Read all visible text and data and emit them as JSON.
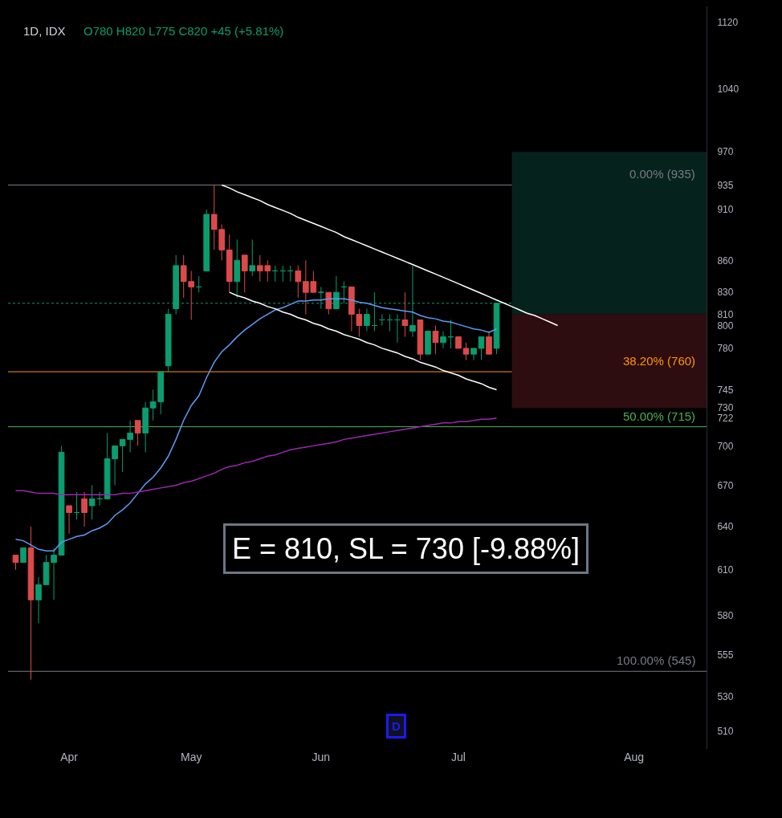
{
  "chart_data": {
    "type": "candlestick",
    "title": "1D, IDX",
    "subtitle": "O780 H820 L775 C820 +45 (+5.81%)",
    "categories": [
      null,
      null,
      null,
      null,
      null,
      null,
      null,
      "Apr",
      null,
      null,
      null,
      null,
      null,
      null,
      null,
      null,
      null,
      null,
      null,
      null,
      null,
      null,
      null,
      "May",
      null,
      null,
      null,
      null,
      null,
      null,
      null,
      null,
      null,
      null,
      null,
      null,
      null,
      null,
      null,
      null,
      "Jun",
      null,
      null,
      null,
      null,
      null,
      null,
      null,
      null,
      null,
      null,
      null,
      null,
      null,
      null,
      null,
      null,
      null,
      "Jul",
      null,
      null,
      null,
      null,
      null,
      null,
      null,
      null,
      null,
      null,
      null,
      null,
      null,
      null,
      null,
      null,
      null,
      null,
      null,
      null,
      null,
      null,
      "Aug",
      null,
      null,
      null,
      null,
      null,
      null,
      null,
      null,
      null
    ],
    "ohlc": [
      [
        620,
        620,
        610,
        615
      ],
      [
        615,
        625,
        615,
        625
      ],
      [
        625,
        640,
        540,
        590
      ],
      [
        590,
        605,
        575,
        600
      ],
      [
        600,
        620,
        600,
        615
      ],
      [
        615,
        625,
        590,
        620
      ],
      [
        620,
        700,
        620,
        695
      ],
      [
        655,
        655,
        635,
        650
      ],
      [
        650,
        665,
        645,
        650
      ],
      [
        660,
        665,
        640,
        650
      ],
      [
        655,
        670,
        645,
        660
      ],
      [
        660,
        665,
        655,
        660
      ],
      [
        660,
        710,
        660,
        690
      ],
      [
        690,
        700,
        670,
        700
      ],
      [
        700,
        705,
        680,
        705
      ],
      [
        705,
        720,
        695,
        710
      ],
      [
        720,
        720,
        700,
        710
      ],
      [
        710,
        735,
        695,
        730
      ],
      [
        730,
        745,
        720,
        735
      ],
      [
        735,
        760,
        725,
        760
      ],
      [
        765,
        815,
        760,
        810
      ],
      [
        815,
        865,
        810,
        855
      ],
      [
        855,
        865,
        825,
        840
      ],
      [
        840,
        850,
        805,
        835
      ],
      [
        835,
        845,
        830,
        835
      ],
      [
        850,
        910,
        850,
        905
      ],
      [
        905,
        935,
        870,
        890
      ],
      [
        890,
        895,
        860,
        870
      ],
      [
        870,
        885,
        830,
        840
      ],
      [
        840,
        880,
        825,
        860
      ],
      [
        865,
        865,
        830,
        850
      ],
      [
        850,
        880,
        845,
        855
      ],
      [
        855,
        865,
        840,
        850
      ],
      [
        855,
        860,
        840,
        850
      ],
      [
        850,
        855,
        840,
        850
      ],
      [
        850,
        855,
        840,
        850
      ],
      [
        850,
        855,
        840,
        850
      ],
      [
        850,
        855,
        825,
        840
      ],
      [
        840,
        860,
        810,
        830
      ],
      [
        840,
        850,
        830,
        830
      ],
      [
        830,
        835,
        815,
        830
      ],
      [
        830,
        830,
        810,
        815
      ],
      [
        815,
        845,
        815,
        830
      ],
      [
        835,
        840,
        820,
        835
      ],
      [
        835,
        835,
        795,
        810
      ],
      [
        810,
        815,
        790,
        800
      ],
      [
        800,
        815,
        795,
        810
      ],
      [
        800,
        830,
        795,
        800
      ],
      [
        805,
        810,
        800,
        805
      ],
      [
        805,
        810,
        795,
        805
      ],
      [
        805,
        810,
        785,
        805
      ],
      [
        805,
        830,
        790,
        800
      ],
      [
        795,
        855,
        790,
        800
      ],
      [
        805,
        805,
        770,
        775
      ],
      [
        775,
        795,
        775,
        795
      ],
      [
        795,
        800,
        775,
        785
      ],
      [
        785,
        795,
        780,
        790
      ],
      [
        790,
        805,
        780,
        790
      ],
      [
        790,
        790,
        780,
        780
      ],
      [
        780,
        785,
        770,
        775
      ],
      [
        775,
        780,
        770,
        780
      ],
      [
        780,
        790,
        770,
        790
      ],
      [
        790,
        795,
        775,
        775
      ],
      [
        780,
        820,
        775,
        820
      ],
      null,
      null,
      null,
      null,
      null,
      null,
      null,
      null,
      null,
      null,
      null,
      null,
      null,
      null,
      null,
      null,
      null,
      null,
      null,
      null,
      null,
      null,
      null,
      null,
      null,
      null,
      null
    ],
    "colors": [
      "#db4a4a",
      "#0b9c6f",
      "#db4a4a",
      "#0b9c6f",
      "#0b9c6f",
      "#0b9c6f",
      "#0b9c6f",
      "#db4a4a",
      "#0b9c6f",
      "#db4a4a",
      "#0b9c6f",
      "#0b9c6f",
      "#0b9c6f",
      "#0b9c6f",
      "#0b9c6f",
      "#0b9c6f",
      "#db4a4a",
      "#0b9c6f",
      "#0b9c6f",
      "#0b9c6f",
      "#0b9c6f",
      "#0b9c6f",
      "#db4a4a",
      "#db4a4a",
      "#0b9c6f",
      "#0b9c6f",
      "#db4a4a",
      "#db4a4a",
      "#db4a4a",
      "#0b9c6f",
      "#db4a4a",
      "#0b9c6f",
      "#db4a4a",
      "#db4a4a",
      "#0b9c6f",
      "#0b9c6f",
      "#0b9c6f",
      "#db4a4a",
      "#db4a4a",
      "#db4a4a",
      "#0b9c6f",
      "#db4a4a",
      "#0b9c6f",
      "#0b9c6f",
      "#db4a4a",
      "#db4a4a",
      "#0b9c6f",
      "#0b9c6f",
      "#0b9c6f",
      "#0b9c6f",
      "#0b9c6f",
      "#db4a4a",
      "#0b9c6f",
      "#db4a4a",
      "#0b9c6f",
      "#db4a4a",
      "#0b9c6f",
      "#0b9c6f",
      "#db4a4a",
      "#db4a4a",
      "#0b9c6f",
      "#0b9c6f",
      "#db4a4a",
      "#0b9c6f",
      null,
      null,
      null,
      null,
      null,
      null,
      null,
      null,
      null,
      null,
      null,
      null,
      null,
      null,
      null,
      null,
      null,
      null,
      null,
      null,
      null,
      null,
      null,
      null,
      null,
      null,
      null
    ],
    "series": [
      {
        "type": "line",
        "color": "#5b9cf6",
        "values": [
          631,
          630,
          627,
          624,
          623,
          623,
          629,
          631,
          633,
          634,
          637,
          639,
          642,
          648,
          652,
          657,
          664,
          671,
          676,
          683,
          692,
          705,
          720,
          732,
          740,
          755,
          768,
          777,
          783,
          790,
          796,
          801,
          806,
          810,
          814,
          816,
          819,
          822,
          822,
          823,
          823,
          824,
          824,
          824,
          823,
          821,
          820,
          818,
          816,
          815,
          814,
          813,
          812,
          809,
          807,
          806,
          804,
          803,
          801,
          799,
          797,
          796,
          794,
          797,
          null,
          null,
          null,
          null,
          null,
          null,
          null,
          null,
          null,
          null,
          null,
          null,
          null,
          null,
          null,
          null,
          null,
          null,
          null,
          null,
          null,
          null,
          null,
          null,
          null,
          null,
          null
        ]
      },
      {
        "type": "line",
        "color": "#9c27b0",
        "values": [
          666,
          666,
          665,
          664,
          664,
          664,
          663,
          663,
          663,
          663,
          663,
          663,
          663,
          663,
          664,
          664,
          665,
          666,
          667,
          668,
          669,
          670,
          672,
          673,
          675,
          677,
          679,
          682,
          684,
          685,
          687,
          688,
          690,
          692,
          693,
          695,
          697,
          698,
          699,
          700,
          701,
          702,
          703,
          705,
          706,
          707,
          708,
          709,
          710,
          711,
          712,
          713,
          714,
          715,
          716,
          717,
          718,
          718,
          719,
          719,
          720,
          721,
          721,
          722,
          null,
          null,
          null,
          null,
          null,
          null,
          null,
          null,
          null,
          null,
          null,
          null,
          null,
          null,
          null,
          null,
          null,
          null,
          null,
          null,
          null,
          null,
          null,
          null,
          null,
          null,
          null
        ]
      },
      {
        "type": "line",
        "color": "#ffffff",
        "values": [
          null,
          null,
          null,
          null,
          null,
          null,
          null,
          null,
          null,
          null,
          null,
          null,
          null,
          null,
          null,
          null,
          null,
          null,
          null,
          null,
          null,
          null,
          null,
          null,
          null,
          null,
          null,
          935,
          932,
          928,
          925,
          922,
          919,
          915,
          912,
          909,
          906,
          902,
          899,
          896,
          893,
          890,
          887,
          883,
          880,
          877,
          874,
          871,
          868,
          865,
          862,
          859,
          856,
          853,
          850,
          847,
          844,
          841,
          838,
          835,
          832,
          829,
          826,
          823,
          820,
          817,
          814,
          811,
          809,
          806,
          803,
          800,
          null,
          null,
          null,
          null,
          null,
          null,
          null,
          null,
          null,
          null,
          null,
          null,
          null,
          null,
          null,
          null,
          null,
          null,
          null
        ]
      },
      {
        "type": "line",
        "color": "#ffffff",
        "values": [
          null,
          null,
          null,
          null,
          null,
          null,
          null,
          null,
          null,
          null,
          null,
          null,
          null,
          null,
          null,
          null,
          null,
          null,
          null,
          null,
          null,
          null,
          null,
          null,
          null,
          null,
          null,
          null,
          830,
          827,
          825,
          822,
          820,
          817,
          815,
          812,
          810,
          807,
          805,
          802,
          800,
          797,
          795,
          792,
          790,
          788,
          785,
          783,
          780,
          778,
          776,
          773,
          771,
          768,
          766,
          764,
          761,
          759,
          757,
          754,
          752,
          750,
          747,
          745,
          null,
          null,
          null,
          null,
          null,
          null,
          null,
          null,
          null,
          null,
          null,
          null,
          null,
          null,
          null,
          null,
          null,
          null,
          null,
          null,
          null,
          null,
          null,
          null,
          null,
          null,
          null
        ]
      }
    ],
    "log": true,
    "ylim": [
      500,
      1140
    ],
    "yticks": [
      510,
      530,
      555,
      580,
      610,
      640,
      670,
      700,
      722,
      730,
      745,
      780,
      800,
      810,
      830,
      860,
      910,
      935,
      970,
      1040,
      1120
    ],
    "ref_lines": [
      {
        "axis": "y",
        "value": 935,
        "label": "0.00% (935)",
        "color": "#787b86"
      },
      {
        "axis": "y",
        "value": 760,
        "label": "38.20% (760)",
        "color": "#ff9800"
      },
      {
        "axis": "y",
        "value": 715,
        "label": "50.00% (715)",
        "color": "#4caf50"
      },
      {
        "axis": "y",
        "value": 545,
        "label": "100.00% (545)",
        "color": "#787b86"
      },
      {
        "axis": "y",
        "value": 820,
        "color": "#0b9c6f",
        "line_style": "dotted"
      }
    ],
    "bands": [
      {
        "axis": "y",
        "from": 810,
        "to": 970,
        "color": "#06221c"
      },
      {
        "axis": "y",
        "from": 730,
        "to": 810,
        "color": "#2e0d10"
      }
    ],
    "annotations": [
      "E = 810, SL = 730 [-9.88%]",
      "D"
    ]
  }
}
